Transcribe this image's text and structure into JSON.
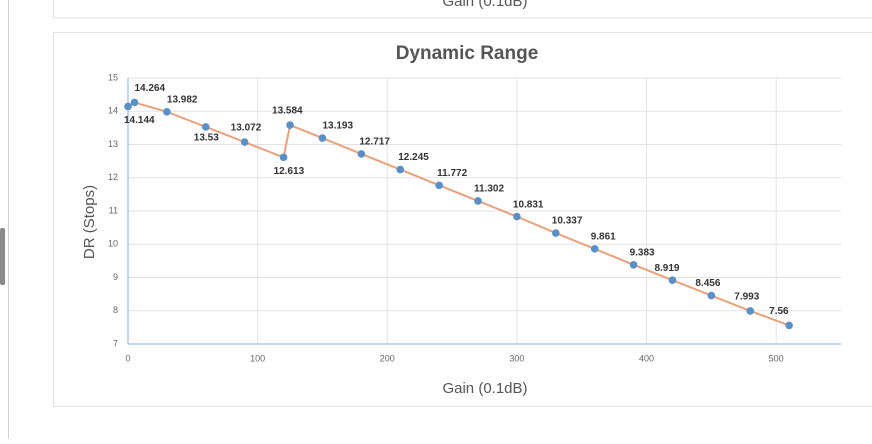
{
  "clipped_text": "Gain (0.1dB)",
  "chart_data": {
    "type": "line",
    "title": "Dynamic Range",
    "x_label": "Gain (0.1dB)",
    "y_label": "DR (Stops)",
    "x": [
      0,
      5,
      30,
      60,
      90,
      120,
      125,
      150,
      180,
      210,
      240,
      270,
      300,
      330,
      360,
      390,
      420,
      450,
      480,
      510
    ],
    "series": [
      {
        "color": "#e9a17d",
        "marker_color": "#5b8fc7",
        "values": [
          14.144,
          14.264,
          13.982,
          13.53,
          13.072,
          12.613,
          13.584,
          13.193,
          12.717,
          12.245,
          11.772,
          11.302,
          10.831,
          10.337,
          9.861,
          9.383,
          8.919,
          8.456,
          7.993,
          7.56
        ]
      }
    ],
    "xlim": [
      0,
      550
    ],
    "xticks": [
      0,
      100,
      200,
      300,
      400,
      500
    ],
    "ylim": [
      7,
      15
    ],
    "yticks": [
      7,
      8,
      9,
      10,
      11,
      12,
      13,
      14,
      15
    ],
    "grid": true
  }
}
